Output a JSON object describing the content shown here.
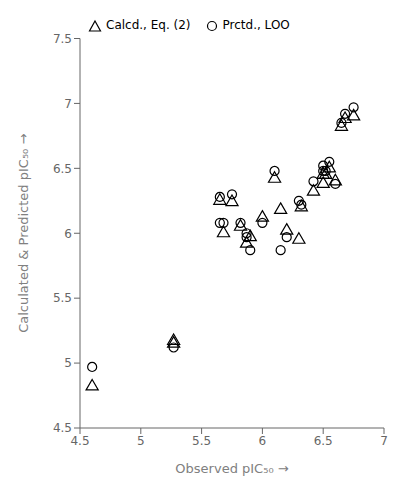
{
  "chart_data": {
    "type": "scatter",
    "xlabel": "Observed pIC₅₀  →",
    "ylabel": "Calculated & Predicted pIC₅₀  →",
    "xlim": [
      4.5,
      7.0
    ],
    "ylim": [
      4.5,
      7.5
    ],
    "xticks": [
      4.5,
      5,
      5.5,
      6,
      6.5,
      7
    ],
    "yticks": [
      4.5,
      5,
      5.5,
      6,
      6.5,
      7,
      7.5
    ],
    "legend": "upper left",
    "grid": false,
    "series": [
      {
        "name": "Calcd., Eq. (2)",
        "color": "black",
        "marker": "triangle",
        "x": [
          4.6,
          5.27,
          5.27,
          5.65,
          5.68,
          5.75,
          5.82,
          5.87,
          5.9,
          6.0,
          6.1,
          6.15,
          6.2,
          6.3,
          6.32,
          6.42,
          6.5,
          6.5,
          6.52,
          6.55,
          6.6,
          6.65,
          6.68,
          6.75
        ],
        "values": [
          4.82,
          5.17,
          5.15,
          6.25,
          6.0,
          6.24,
          6.05,
          5.92,
          5.97,
          6.12,
          6.42,
          6.18,
          6.02,
          5.95,
          6.2,
          6.32,
          6.38,
          6.45,
          6.45,
          6.5,
          6.4,
          6.82,
          6.88,
          6.9
        ]
      },
      {
        "name": "Prctd., LOO",
        "color": "black",
        "marker": "circle",
        "x": [
          4.6,
          5.27,
          5.65,
          5.65,
          5.68,
          5.75,
          5.82,
          5.87,
          5.87,
          5.9,
          6.0,
          6.1,
          6.15,
          6.2,
          6.3,
          6.32,
          6.42,
          6.5,
          6.5,
          6.52,
          6.55,
          6.6,
          6.65,
          6.68,
          6.75
        ],
        "values": [
          4.97,
          5.12,
          6.28,
          6.08,
          6.08,
          6.3,
          6.08,
          5.97,
          6.0,
          5.87,
          6.08,
          6.48,
          5.87,
          5.97,
          6.25,
          6.22,
          6.4,
          6.48,
          6.52,
          6.48,
          6.55,
          6.38,
          6.85,
          6.92,
          6.97
        ]
      }
    ]
  }
}
